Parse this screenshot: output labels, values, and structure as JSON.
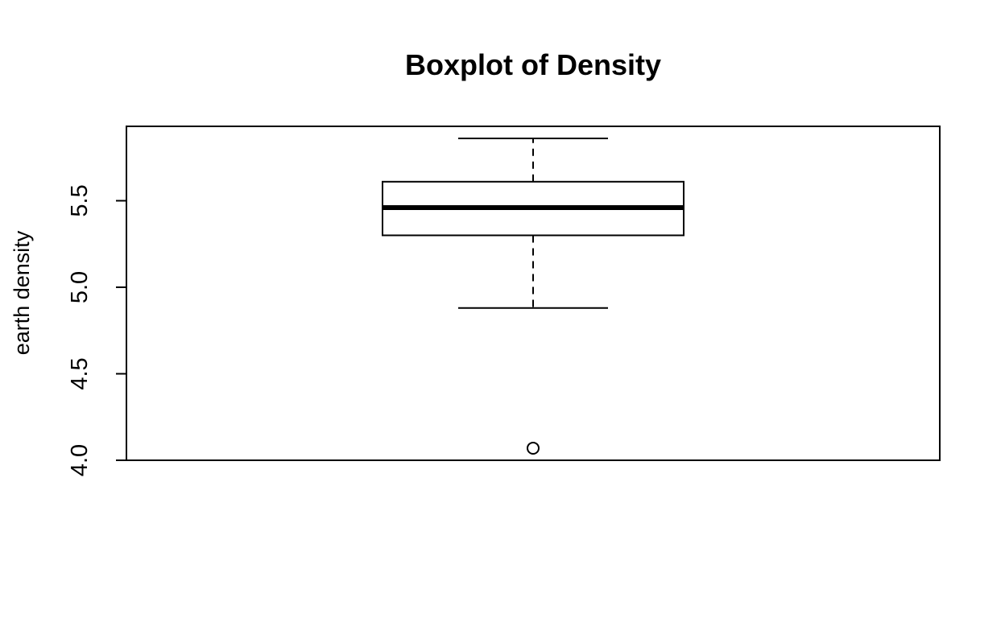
{
  "chart_data": {
    "type": "box",
    "title": "Boxplot of Density",
    "xlabel": "",
    "ylabel": "earth density",
    "ylim": [
      4.0,
      5.93
    ],
    "yticks": [
      4.0,
      4.5,
      5.0,
      5.5
    ],
    "ytick_labels": [
      "4.0",
      "4.5",
      "5.0",
      "5.5"
    ],
    "grid": false,
    "legend": "none",
    "box": {
      "whisker_low": 4.88,
      "q1": 5.3,
      "median": 5.46,
      "q3": 5.61,
      "whisker_high": 5.86,
      "outliers": [
        4.07
      ]
    },
    "colors": {
      "stroke": "#000000",
      "fill": "#ffffff"
    }
  }
}
